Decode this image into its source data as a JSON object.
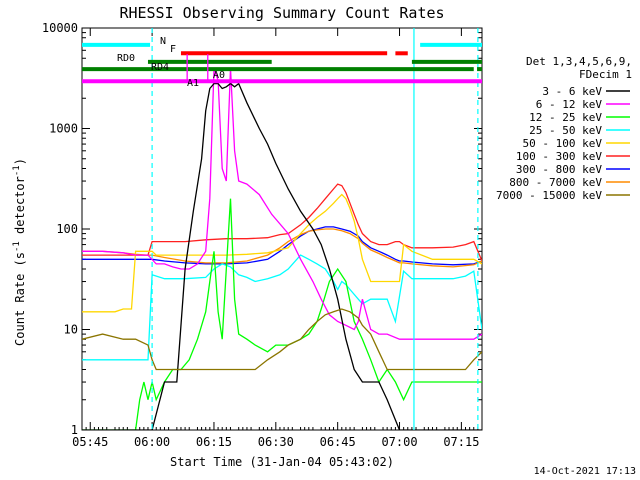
{
  "chart_data": {
    "type": "line",
    "title": "RHESSI Observing Summary Count Rates",
    "xlabel": "Start Time (31-Jan-04 05:43:02)",
    "ylabel_main": "Count Rate (s",
    "ylabel_sup": "-1",
    "ylabel_mid": " detector",
    "ylabel_sup2": "-1",
    "ylabel_end": ")",
    "x_unit": "minutes since 05:43:02",
    "xlim": [
      0,
      97
    ],
    "ylim": [
      1,
      10000
    ],
    "yscale": "log",
    "xticks": [
      {
        "v": 2,
        "label": "05:45"
      },
      {
        "v": 17,
        "label": "06:00"
      },
      {
        "v": 32,
        "label": "06:15"
      },
      {
        "v": 47,
        "label": "06:30"
      },
      {
        "v": 62,
        "label": "06:45"
      },
      {
        "v": 77,
        "label": "07:00"
      },
      {
        "v": 92,
        "label": "07:15"
      }
    ],
    "yticks": [
      {
        "v": 1,
        "label": "1"
      },
      {
        "v": 10,
        "label": "10"
      },
      {
        "v": 100,
        "label": "100"
      },
      {
        "v": 1000,
        "label": "1000"
      },
      {
        "v": 10000,
        "label": "10000"
      }
    ],
    "legend_header": [
      "Det 1,3,4,5,6,9,",
      "FDecim 1"
    ],
    "legend_position": "right",
    "footer_date": "14-Oct-2021 17:13",
    "series": [
      {
        "name": "3 - 6 keV",
        "color": "#000000",
        "x": [
          0,
          5,
          10,
          13,
          16,
          17,
          20,
          23,
          25,
          27,
          29,
          30,
          31,
          32,
          33,
          34,
          35,
          36,
          37,
          38,
          40,
          43,
          45,
          47,
          50,
          53,
          56,
          58,
          60,
          62,
          64,
          66,
          68,
          70,
          72,
          74,
          77,
          80,
          85,
          90,
          95,
          97
        ],
        "y": [
          1,
          1,
          1,
          1,
          1,
          1,
          3,
          3,
          40,
          150,
          500,
          1500,
          2500,
          2800,
          2800,
          2500,
          2600,
          2800,
          2600,
          2800,
          1800,
          1000,
          700,
          450,
          250,
          150,
          100,
          70,
          40,
          20,
          8,
          4,
          3,
          3,
          3,
          2,
          1,
          1,
          1,
          1,
          1,
          1
        ]
      },
      {
        "name": "6 - 12 keV",
        "color": "#ff00ff",
        "x": [
          0,
          5,
          10,
          13,
          16,
          18,
          20,
          22,
          24,
          26,
          28,
          30,
          31,
          32,
          33,
          34,
          35,
          36,
          37,
          38,
          40,
          43,
          46,
          50,
          53,
          56,
          58,
          60,
          62,
          64,
          66,
          67,
          68,
          70,
          72,
          74,
          77,
          80,
          85,
          90,
          95,
          97
        ],
        "y": [
          60,
          60,
          58,
          55,
          55,
          45,
          45,
          42,
          40,
          40,
          45,
          60,
          200,
          4000,
          3000,
          400,
          300,
          4000,
          600,
          300,
          280,
          220,
          140,
          90,
          50,
          30,
          20,
          14,
          12,
          11,
          10,
          12,
          20,
          10,
          9,
          9,
          8,
          8,
          8,
          8,
          8,
          9
        ]
      },
      {
        "name": "12 - 25 keV",
        "color": "#00ff00",
        "x": [
          0,
          5,
          10,
          13,
          14,
          15,
          16,
          17,
          18,
          20,
          22,
          24,
          26,
          28,
          30,
          31,
          32,
          33,
          34,
          35,
          36,
          37,
          38,
          40,
          42,
          45,
          47,
          50,
          53,
          55,
          57,
          58,
          60,
          62,
          64,
          66,
          68,
          70,
          72,
          74,
          76,
          78,
          80,
          85,
          90,
          95,
          97
        ],
        "y": [
          1,
          1,
          1,
          1,
          2,
          3,
          2,
          3,
          2,
          3,
          4,
          4,
          5,
          8,
          15,
          30,
          60,
          15,
          8,
          40,
          200,
          20,
          9,
          8,
          7,
          6,
          7,
          7,
          8,
          9,
          12,
          16,
          30,
          40,
          30,
          12,
          8,
          5,
          3,
          4,
          3,
          2,
          3,
          3,
          3,
          3,
          3
        ]
      },
      {
        "name": "25 - 50 keV",
        "color": "#00ffff",
        "x": [
          0,
          5,
          10,
          13,
          16,
          17,
          20,
          25,
          30,
          32,
          34,
          36,
          38,
          40,
          42,
          45,
          48,
          50,
          53,
          55,
          57,
          59,
          61,
          62,
          63,
          64,
          65,
          67,
          68,
          70,
          72,
          74,
          76,
          78,
          80,
          85,
          90,
          93,
          95,
          97
        ],
        "y": [
          5,
          5,
          5,
          5,
          5,
          35,
          32,
          32,
          33,
          40,
          45,
          42,
          35,
          33,
          30,
          32,
          35,
          40,
          55,
          50,
          45,
          40,
          30,
          25,
          30,
          28,
          25,
          20,
          18,
          20,
          20,
          20,
          12,
          38,
          32,
          32,
          32,
          34,
          38,
          10
        ]
      },
      {
        "name": "50 - 100 keV",
        "color": "#ffd700",
        "x": [
          0,
          5,
          8,
          10,
          12,
          13,
          14,
          16,
          17,
          18,
          20,
          25,
          30,
          35,
          40,
          45,
          48,
          50,
          53,
          55,
          57,
          59,
          61,
          62,
          63,
          64,
          65,
          66,
          67,
          68,
          70,
          72,
          74,
          76,
          77,
          78,
          80,
          85,
          90,
          95,
          97
        ],
        "y": [
          15,
          15,
          15,
          16,
          16,
          60,
          60,
          60,
          60,
          55,
          55,
          55,
          55,
          55,
          56,
          58,
          62,
          65,
          90,
          110,
          130,
          150,
          180,
          200,
          220,
          200,
          160,
          120,
          80,
          50,
          30,
          30,
          30,
          30,
          30,
          70,
          60,
          50,
          50,
          50,
          45
        ]
      },
      {
        "name": "100 - 300 keV",
        "color": "#ff2020",
        "x": [
          0,
          5,
          10,
          13,
          16,
          17,
          20,
          25,
          30,
          35,
          40,
          45,
          48,
          50,
          53,
          55,
          57,
          59,
          61,
          62,
          63,
          64,
          65,
          66,
          67,
          68,
          70,
          72,
          74,
          76,
          77,
          78,
          80,
          85,
          90,
          93,
          95,
          97
        ],
        "y": [
          55,
          55,
          55,
          55,
          55,
          75,
          75,
          75,
          78,
          80,
          80,
          82,
          88,
          90,
          110,
          130,
          160,
          200,
          250,
          280,
          270,
          230,
          180,
          140,
          110,
          90,
          75,
          70,
          70,
          75,
          75,
          70,
          65,
          65,
          66,
          70,
          75,
          48
        ]
      },
      {
        "name": "300 - 800 keV",
        "color": "#0000ff",
        "x": [
          0,
          5,
          10,
          13,
          16,
          17,
          20,
          25,
          30,
          35,
          40,
          45,
          48,
          50,
          53,
          55,
          57,
          59,
          61,
          63,
          65,
          67,
          68,
          70,
          72,
          74,
          76,
          77,
          78,
          80,
          85,
          90,
          95,
          97
        ],
        "y": [
          50,
          50,
          50,
          50,
          50,
          50,
          48,
          46,
          45,
          45,
          46,
          50,
          60,
          70,
          85,
          95,
          100,
          105,
          105,
          100,
          95,
          85,
          75,
          65,
          60,
          55,
          50,
          48,
          48,
          47,
          45,
          44,
          45,
          48
        ]
      },
      {
        "name": "800 - 7000 keV",
        "color": "#ff8c00",
        "x": [
          0,
          5,
          10,
          13,
          16,
          17,
          20,
          25,
          30,
          35,
          40,
          45,
          48,
          50,
          53,
          55,
          57,
          59,
          61,
          63,
          65,
          67,
          68,
          70,
          72,
          74,
          76,
          77,
          78,
          80,
          85,
          90,
          95,
          97
        ],
        "y": [
          60,
          60,
          58,
          56,
          55,
          55,
          52,
          48,
          46,
          46,
          48,
          55,
          65,
          75,
          88,
          95,
          98,
          100,
          100,
          96,
          90,
          80,
          72,
          62,
          57,
          52,
          48,
          46,
          46,
          45,
          43,
          42,
          44,
          48
        ]
      },
      {
        "name": "7000 - 15000 keV",
        "color": "#8b7500",
        "x": [
          0,
          5,
          10,
          13,
          16,
          17,
          18,
          20,
          22,
          25,
          28,
          30,
          35,
          40,
          42,
          45,
          48,
          50,
          53,
          55,
          57,
          59,
          61,
          63,
          65,
          67,
          68,
          70,
          72,
          74,
          76,
          77,
          78,
          80,
          85,
          90,
          93,
          95,
          97
        ],
        "y": [
          8,
          9,
          8,
          8,
          7,
          5,
          4,
          4,
          4,
          4,
          4,
          4,
          4,
          4,
          4,
          5,
          6,
          7,
          8,
          10,
          12,
          14,
          15,
          16,
          15,
          13,
          11,
          9,
          6,
          4,
          4,
          4,
          4,
          4,
          4,
          4,
          4,
          5,
          6
        ]
      }
    ],
    "flag_bars": [
      {
        "label": "N",
        "color": "#00ffff",
        "y": 6800,
        "segments": [
          [
            0,
            16.5
          ],
          [
            82,
            97
          ]
        ]
      },
      {
        "label": "F",
        "color": "#ff0000",
        "y": 5600,
        "segments": [
          [
            24,
            74
          ],
          [
            76,
            79
          ]
        ]
      },
      {
        "label": "RD0",
        "color": "#008000",
        "y": 4600,
        "segments": [
          [
            16,
            46
          ],
          [
            80,
            97
          ]
        ]
      },
      {
        "label": "RD4",
        "color": "#008000",
        "y": 3900,
        "segments": [
          [
            0,
            95
          ],
          [
            95.8,
            97
          ]
        ]
      },
      {
        "label": "A1",
        "color": "#ff00ff",
        "y": 2950,
        "segments": [
          [
            0,
            97
          ]
        ]
      },
      {
        "label": "A0",
        "color": "#ff00ff",
        "y": 3150,
        "segments": []
      }
    ],
    "vlines": [
      {
        "x": 17,
        "color": "#00ffff",
        "dash": true
      },
      {
        "x": 80.5,
        "color": "#00ffff",
        "dash": false
      },
      {
        "x": 96,
        "color": "#00ffff",
        "dash": true
      }
    ]
  }
}
